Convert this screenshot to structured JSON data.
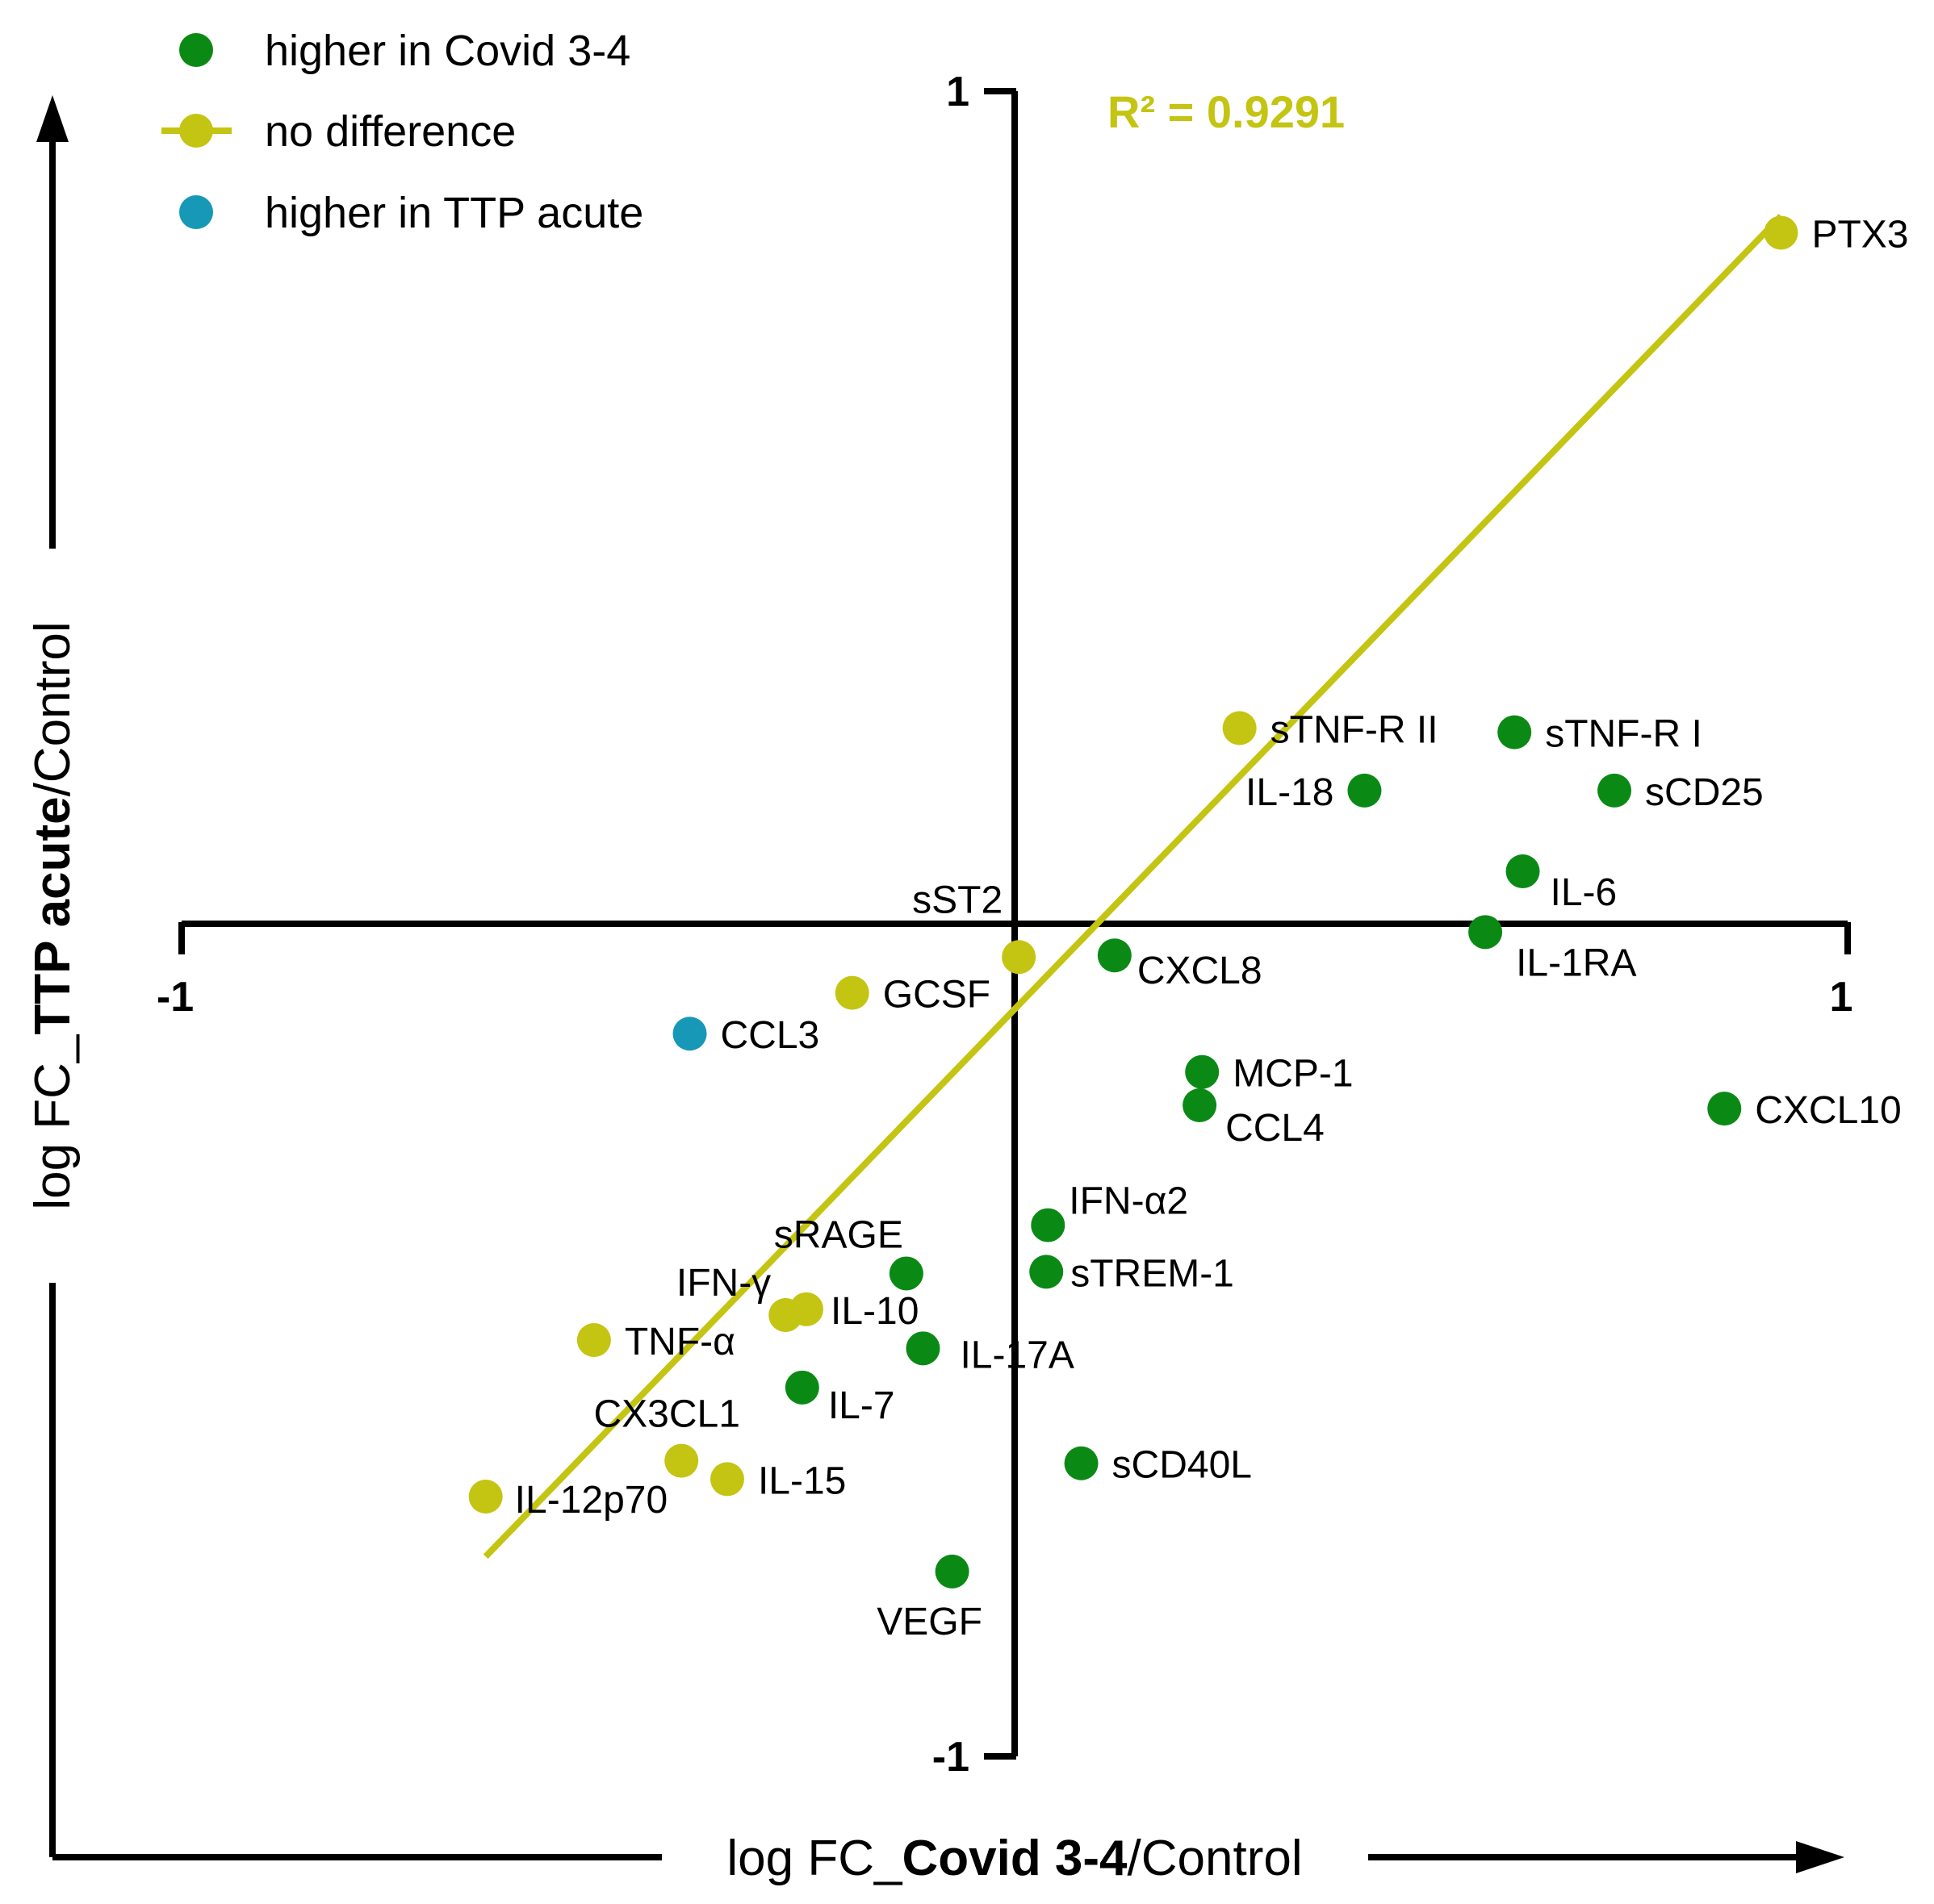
{
  "chart_data": {
    "type": "scatter",
    "title": "",
    "xlabel": {
      "prefix": "log FC_",
      "bold": "Covid 3-4",
      "suffix": "/Control"
    },
    "ylabel": {
      "prefix": "log FC_",
      "bold": "TTP acute",
      "suffix": "/Control"
    },
    "xlim": [
      -1,
      1
    ],
    "ylim": [
      -1,
      1
    ],
    "x_ticks": [
      "-1",
      "1"
    ],
    "y_ticks": [
      "1",
      "-1"
    ],
    "annotation": "R² = 0.9291",
    "regression": {
      "x": [
        -0.635,
        0.92
      ],
      "y": [
        -0.76,
        0.85
      ]
    },
    "colors": {
      "higher_covid": "#0a8a14",
      "no_difference": "#c4c412",
      "higher_ttp": "#1798b6",
      "axis": "#000000"
    },
    "legend": [
      {
        "label": "higher in Covid 3-4",
        "group": "higher_covid"
      },
      {
        "label": "no difference",
        "group": "no_difference"
      },
      {
        "label": "higher in TTP acute",
        "group": "higher_ttp"
      }
    ],
    "points": [
      {
        "label": "PTX3",
        "x": 0.92,
        "y": 0.83,
        "group": "no_difference"
      },
      {
        "label": "sTNF-R II",
        "x": 0.27,
        "y": 0.235,
        "group": "no_difference"
      },
      {
        "label": "sTNF-R I",
        "x": 0.6,
        "y": 0.23,
        "group": "higher_covid"
      },
      {
        "label": "IL-18",
        "x": 0.42,
        "y": 0.16,
        "group": "higher_covid"
      },
      {
        "label": "sCD25",
        "x": 0.72,
        "y": 0.16,
        "group": "higher_covid"
      },
      {
        "label": "IL-6",
        "x": 0.61,
        "y": 0.063,
        "group": "higher_covid"
      },
      {
        "label": "IL-1RA",
        "x": 0.565,
        "y": -0.01,
        "group": "higher_covid"
      },
      {
        "label": "sST2",
        "x": 0.005,
        "y": -0.04,
        "group": "no_difference"
      },
      {
        "label": "CXCL8",
        "x": 0.12,
        "y": -0.038,
        "group": "higher_covid"
      },
      {
        "label": "GCSF",
        "x": -0.195,
        "y": -0.083,
        "group": "no_difference"
      },
      {
        "label": "CCL3",
        "x": -0.39,
        "y": -0.132,
        "group": "higher_ttp"
      },
      {
        "label": "MCP-1",
        "x": 0.225,
        "y": -0.178,
        "group": "higher_covid"
      },
      {
        "label": "CCL4",
        "x": 0.222,
        "y": -0.218,
        "group": "higher_covid"
      },
      {
        "label": "CXCL10",
        "x": 0.852,
        "y": -0.222,
        "group": "higher_covid"
      },
      {
        "label": "IFN-α2",
        "x": 0.04,
        "y": -0.362,
        "group": "higher_covid"
      },
      {
        "label": "sTREM-1",
        "x": 0.038,
        "y": -0.418,
        "group": "higher_covid"
      },
      {
        "label": "sRAGE",
        "x": -0.13,
        "y": -0.42,
        "group": "higher_covid"
      },
      {
        "label": "IFN-γ",
        "x": -0.275,
        "y": -0.47,
        "group": "no_difference"
      },
      {
        "label": "IL-10",
        "x": -0.25,
        "y": -0.463,
        "group": "no_difference"
      },
      {
        "label": "TNF-α",
        "x": -0.505,
        "y": -0.5,
        "group": "no_difference"
      },
      {
        "label": "IL-17A",
        "x": -0.11,
        "y": -0.51,
        "group": "higher_covid"
      },
      {
        "label": "IL-7",
        "x": -0.255,
        "y": -0.557,
        "group": "higher_covid"
      },
      {
        "label": "CX3CL1",
        "x": -0.4,
        "y": -0.645,
        "group": "no_difference"
      },
      {
        "label": "IL-15",
        "x": -0.345,
        "y": -0.667,
        "group": "no_difference"
      },
      {
        "label": "IL-12p70",
        "x": -0.635,
        "y": -0.688,
        "group": "no_difference"
      },
      {
        "label": "sCD40L",
        "x": 0.08,
        "y": -0.648,
        "group": "higher_covid"
      },
      {
        "label": "VEGF",
        "x": -0.075,
        "y": -0.778,
        "group": "higher_covid"
      }
    ]
  }
}
